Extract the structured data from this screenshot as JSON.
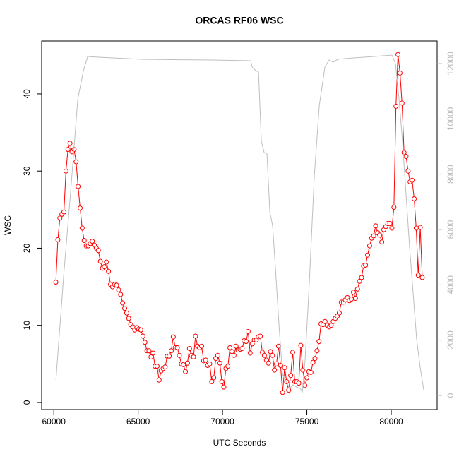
{
  "chart_data": {
    "type": "line",
    "title": "ORCAS RF06 WSC",
    "xlabel": "UTC Seconds",
    "ylabel": "WSC",
    "xlim": [
      59280,
      82720
    ],
    "ylim": [
      -0.92,
      46.86
    ],
    "y2lim": [
      -510,
      12817
    ],
    "xticks": [
      60000,
      65000,
      70000,
      75000,
      80000
    ],
    "yticks": [
      0,
      10,
      20,
      30,
      40
    ],
    "y2ticks": [
      0,
      2000,
      4000,
      6000,
      8000,
      10000,
      12000
    ],
    "y2tick_color": "#bbbbbb",
    "series": [
      {
        "color": "#ff0000",
        "markers": true,
        "x": [
          60120,
          60240,
          60360,
          60480,
          60600,
          60720,
          60840,
          60960,
          61080,
          61200,
          61320,
          61440,
          61560,
          61680,
          61800,
          61920,
          62040,
          62160,
          62280,
          62400,
          62520,
          62640,
          62760,
          62880,
          63000,
          63120,
          63240,
          63360,
          63480,
          63600,
          63720,
          63840,
          63960,
          64080,
          64200,
          64320,
          64440,
          64560,
          64680,
          64800,
          64920,
          65040,
          65160,
          65280,
          65400,
          65520,
          65640,
          65760,
          65880,
          66000,
          66120,
          66240,
          66360,
          66480,
          66600,
          66720,
          66840,
          66960,
          67080,
          67200,
          67320,
          67440,
          67560,
          67680,
          67800,
          67920,
          68040,
          68160,
          68280,
          68400,
          68520,
          68640,
          68760,
          68880,
          69000,
          69120,
          69240,
          69360,
          69480,
          69600,
          69720,
          69840,
          69960,
          70080,
          70200,
          70320,
          70440,
          70560,
          70680,
          70800,
          70920,
          71040,
          71160,
          71280,
          71400,
          71520,
          71640,
          71760,
          71880,
          72000,
          72120,
          72240,
          72360,
          72480,
          72600,
          72720,
          72840,
          72960,
          73080,
          73200,
          73320,
          73440,
          73560,
          73680,
          73800,
          73920,
          74040,
          74160,
          74280,
          74400,
          74520,
          74640,
          74760,
          74880,
          75000,
          75120,
          75240,
          75360,
          75480,
          75600,
          75720,
          75840,
          75960,
          76080,
          76200,
          76320,
          76440,
          76560,
          76680,
          76800,
          76920,
          77040,
          77160,
          77280,
          77400,
          77520,
          77640,
          77760,
          77880,
          78000,
          78120,
          78240,
          78360,
          78480,
          78600,
          78720,
          78840,
          78960,
          79080,
          79200,
          79320,
          79440,
          79560,
          79680,
          79800,
          79920,
          80040,
          80160,
          80280,
          80400,
          80520,
          80640,
          80760,
          80880,
          81000,
          81120,
          81240,
          81360,
          81480,
          81600,
          81720,
          81840
        ],
        "values": [
          15.6,
          21.1,
          23.9,
          24.4,
          24.7,
          30.0,
          32.8,
          33.6,
          32.5,
          32.8,
          31.2,
          28.0,
          25.2,
          22.6,
          21.0,
          20.3,
          20.3,
          20.6,
          20.9,
          20.4,
          20.0,
          19.7,
          18.3,
          17.4,
          17.6,
          18.2,
          17.0,
          15.3,
          15.0,
          15.3,
          15.2,
          14.6,
          14.0,
          12.9,
          12.2,
          11.6,
          10.9,
          10.1,
          9.8,
          9.4,
          9.7,
          9.5,
          9.4,
          8.6,
          7.8,
          6.7,
          6.7,
          5.9,
          6.4,
          4.7,
          4.7,
          2.9,
          4.1,
          4.4,
          4.6,
          6.0,
          6.0,
          6.7,
          8.5,
          7.1,
          7.1,
          6.1,
          5.0,
          4.9,
          4.0,
          5.1,
          7.0,
          6.1,
          5.9,
          8.6,
          7.3,
          7.1,
          7.3,
          5.4,
          5.5,
          4.8,
          5.0,
          2.7,
          3.2,
          5.7,
          6.1,
          5.1,
          2.7,
          2.0,
          4.4,
          4.7,
          7.1,
          6.6,
          6.1,
          7.3,
          6.8,
          6.9,
          7.0,
          8.0,
          7.9,
          9.2,
          6.4,
          7.6,
          8.1,
          8.1,
          8.5,
          8.6,
          6.5,
          6.1,
          5.5,
          5.1,
          6.6,
          6.1,
          4.2,
          5.0,
          7.3,
          4.8,
          1.3,
          4.5,
          2.7,
          1.6,
          3.5,
          6.5,
          2.7,
          2.7,
          2.5,
          7.4,
          4.2,
          2.2,
          3.2,
          4.0,
          3.9,
          5.2,
          5.7,
          6.7,
          7.9,
          10.2,
          10.1,
          10.5,
          10.0,
          9.8,
          10.0,
          10.5,
          10.9,
          11.2,
          11.6,
          13.0,
          13.0,
          13.3,
          13.6,
          13.2,
          13.4,
          14.3,
          13.5,
          14.7,
          15.7,
          16.2,
          17.7,
          17.8,
          19.1,
          20.3,
          21.3,
          21.6,
          22.9,
          22.0,
          21.7,
          20.8,
          22.4,
          22.8,
          23.2,
          23.2,
          22.6,
          25.3,
          38.4,
          45.1,
          42.7,
          38.8,
          32.4,
          31.9,
          30.0,
          28.6,
          28.8,
          26.4,
          22.6,
          16.5,
          22.7,
          16.2
        ]
      },
      {
        "color": "#bebebe",
        "axis": "y2",
        "markers": false,
        "x": [
          60126,
          60586,
          61004,
          61423,
          61757,
          62008,
          62678,
          65188,
          69372,
          71674,
          71757,
          71967,
          72134,
          72301,
          72469,
          72636,
          72803,
          72971,
          73138,
          73347,
          73556,
          73766,
          73975,
          74184,
          74393,
          74603,
          74728,
          74895,
          75146,
          75439,
          75732,
          76067,
          76318,
          76569,
          76820,
          77741,
          78996,
          80042,
          80251,
          80460,
          80669,
          81088,
          81506,
          81715,
          81925
        ],
        "values": [
          562,
          4340,
          7404,
          10723,
          11744,
          12254,
          12229,
          12152,
          12127,
          12101,
          11872,
          11744,
          11693,
          9191,
          8782,
          8731,
          6638,
          6127,
          4595,
          2553,
          766,
          511,
          255,
          383,
          306,
          255,
          128,
          1276,
          4085,
          7914,
          10467,
          11872,
          12127,
          12050,
          12152,
          12203,
          12254,
          12305,
          11999,
          10723,
          9191,
          5361,
          2042,
          1021,
          204
        ]
      }
    ]
  }
}
